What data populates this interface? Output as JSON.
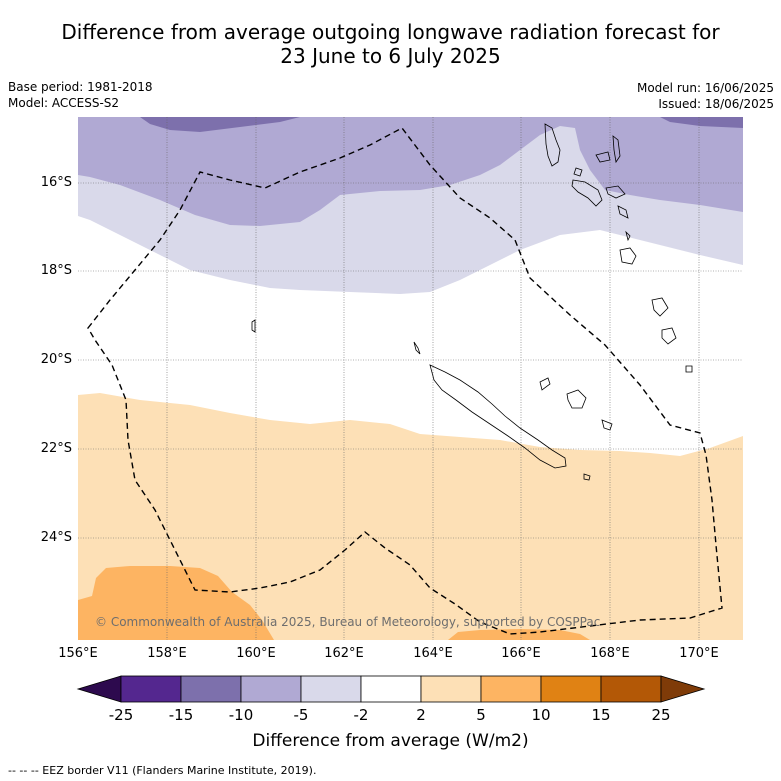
{
  "title_line1": "Difference from average outgoing longwave radiation forecast for",
  "title_line2": "23 June to 6 July 2025",
  "base_period": "Base period: 1981-2018",
  "model": "Model: ACCESS-S2",
  "model_run": "Model run: 16/06/2025",
  "issued": "Issued: 18/06/2025",
  "lat_labels": [
    "16°S",
    "18°S",
    "20°S",
    "22°S",
    "24°S"
  ],
  "lon_labels": [
    "156°E",
    "158°E",
    "160°E",
    "162°E",
    "164°E",
    "166°E",
    "168°E",
    "170°E"
  ],
  "colorbar": {
    "tick_labels": [
      "-25",
      "-15",
      "-10",
      "-5",
      "-2",
      "2",
      "5",
      "10",
      "15",
      "25"
    ],
    "colors": [
      "#2d0a4e",
      "#54278f",
      "#7d70ac",
      "#b0a9d3",
      "#d9d9ea",
      "#ffffff",
      "#fde0b6",
      "#fdb462",
      "#e08214",
      "#b35806",
      "#7f3b08"
    ],
    "title": "Difference from average (W/m2)"
  },
  "copyright": "© Commonwealth of Australia 2025, Bureau of Meteorology, supported by COSPPac",
  "footer": "--  --  -- EEZ border V11 (Flanders Marine Institute, 2019)."
}
